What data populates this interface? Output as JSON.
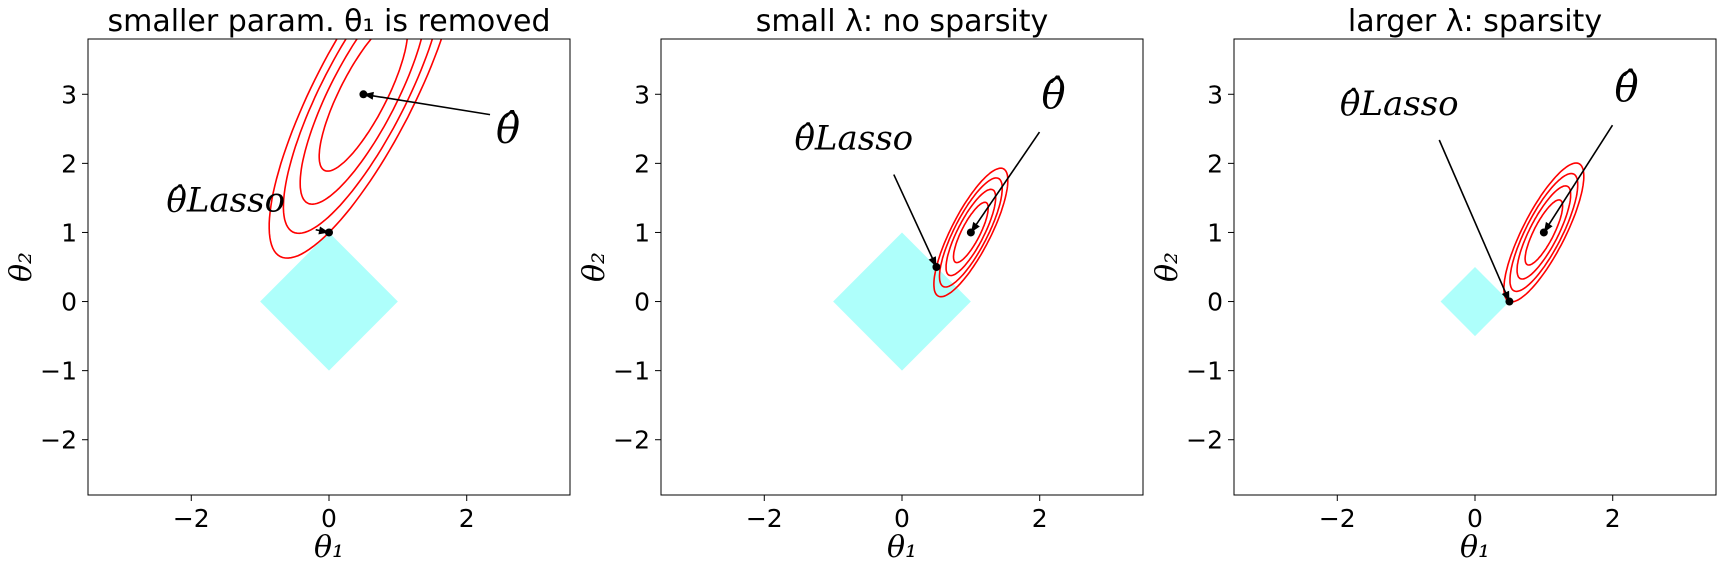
{
  "chart_data": [
    {
      "type": "contour",
      "title": "smaller param. θ₁ is removed",
      "xlabel": "θ₁",
      "ylabel": "θ₂",
      "xlim": [
        -3.5,
        3.5
      ],
      "ylim": [
        -2.8,
        3.8
      ],
      "xticks": [
        -2,
        0,
        2
      ],
      "xtick_labels": [
        "−2",
        "0",
        "2"
      ],
      "yticks": [
        -2,
        -1,
        0,
        1,
        2,
        3
      ],
      "ytick_labels": [
        "−2",
        "−1",
        "0",
        "1",
        "2",
        "3"
      ],
      "constraint_region": {
        "shape": "L1 ball (diamond)",
        "radius": 1,
        "color": "#aefffb"
      },
      "theta_hat": [
        0.5,
        3.0
      ],
      "theta_lasso": [
        0.0,
        1.0
      ],
      "contour_color": "#ff0000",
      "annotations": [
        {
          "label": "θ̂",
          "point": "theta_hat",
          "text_at": [
            2.6,
            2.3
          ]
        },
        {
          "label": "θ̂Lasso",
          "point": "theta_lasso",
          "text_at": [
            -1.5,
            1.3
          ]
        }
      ]
    },
    {
      "type": "contour",
      "title": "small λ: no sparsity",
      "xlabel": "θ₁",
      "ylabel": "θ₂",
      "xlim": [
        -3.5,
        3.5
      ],
      "ylim": [
        -2.8,
        3.8
      ],
      "xticks": [
        -2,
        0,
        2
      ],
      "xtick_labels": [
        "−2",
        "0",
        "2"
      ],
      "yticks": [
        -2,
        -1,
        0,
        1,
        2,
        3
      ],
      "ytick_labels": [
        "−2",
        "−1",
        "0",
        "1",
        "2",
        "3"
      ],
      "constraint_region": {
        "shape": "L1 ball (diamond)",
        "radius": 1,
        "color": "#aefffb"
      },
      "theta_hat": [
        1.0,
        1.0
      ],
      "theta_lasso": [
        0.5,
        0.5
      ],
      "contour_color": "#ff0000",
      "annotations": [
        {
          "label": "θ̂",
          "point": "theta_hat",
          "text_at": [
            2.2,
            2.8
          ]
        },
        {
          "label": "θ̂Lasso",
          "point": "theta_lasso",
          "text_at": [
            -0.7,
            2.2
          ]
        }
      ]
    },
    {
      "type": "contour",
      "title": "larger λ: sparsity",
      "xlabel": "θ₁",
      "ylabel": "θ₂",
      "xlim": [
        -3.5,
        3.5
      ],
      "ylim": [
        -2.8,
        3.8
      ],
      "xticks": [
        -2,
        0,
        2
      ],
      "xtick_labels": [
        "−2",
        "0",
        "2"
      ],
      "yticks": [
        -2,
        -1,
        0,
        1,
        2,
        3
      ],
      "ytick_labels": [
        "−2",
        "−1",
        "0",
        "1",
        "2",
        "3"
      ],
      "constraint_region": {
        "shape": "L1 ball (diamond)",
        "radius": 0.5,
        "color": "#aefffb"
      },
      "theta_hat": [
        1.0,
        1.0
      ],
      "theta_lasso": [
        0.5,
        0.0
      ],
      "contour_color": "#ff0000",
      "annotations": [
        {
          "label": "θ̂",
          "point": "theta_hat",
          "text_at": [
            2.2,
            2.9
          ]
        },
        {
          "label": "θ̂Lasso",
          "point": "theta_lasso",
          "text_at": [
            -1.1,
            2.7
          ]
        }
      ]
    }
  ]
}
